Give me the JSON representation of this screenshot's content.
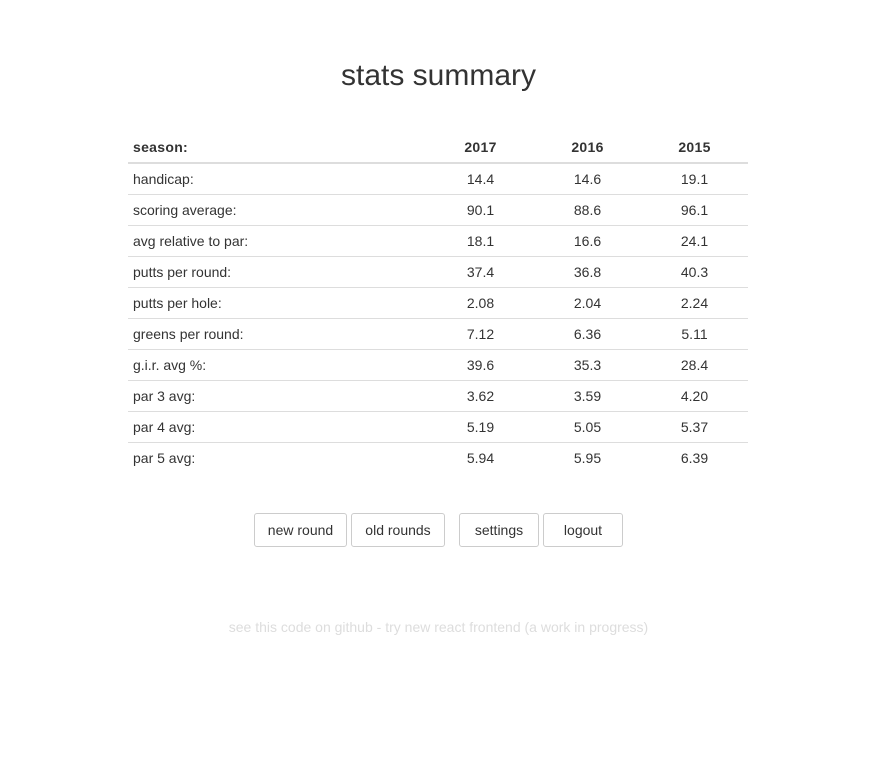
{
  "page": {
    "title": "stats summary"
  },
  "table": {
    "header_label": "season:",
    "years": [
      "2017",
      "2016",
      "2015"
    ],
    "rows": [
      {
        "label": "handicap:",
        "values": [
          "14.4",
          "14.6",
          "19.1"
        ]
      },
      {
        "label": "scoring average:",
        "values": [
          "90.1",
          "88.6",
          "96.1"
        ]
      },
      {
        "label": "avg relative to par:",
        "values": [
          "18.1",
          "16.6",
          "24.1"
        ]
      },
      {
        "label": "putts per round:",
        "values": [
          "37.4",
          "36.8",
          "40.3"
        ]
      },
      {
        "label": "putts per hole:",
        "values": [
          "2.08",
          "2.04",
          "2.24"
        ]
      },
      {
        "label": "greens per round:",
        "values": [
          "7.12",
          "6.36",
          "5.11"
        ]
      },
      {
        "label": "g.i.r. avg %:",
        "values": [
          "39.6",
          "35.3",
          "28.4"
        ]
      },
      {
        "label": "par 3 avg:",
        "values": [
          "3.62",
          "3.59",
          "4.20"
        ]
      },
      {
        "label": "par 4 avg:",
        "values": [
          "5.19",
          "5.05",
          "5.37"
        ]
      },
      {
        "label": "par 5 avg:",
        "values": [
          "5.94",
          "5.95",
          "6.39"
        ]
      }
    ]
  },
  "buttons": {
    "new_round": "new round",
    "old_rounds": "old rounds",
    "settings": "settings",
    "logout": "logout"
  },
  "footer": {
    "github_link": "see this code on github",
    "separator": " - ",
    "react_link": "try new react frontend (a work in progress)"
  },
  "colors": {
    "text": "#333333",
    "border": "#dddddd",
    "footer_text": "#dddddd"
  }
}
